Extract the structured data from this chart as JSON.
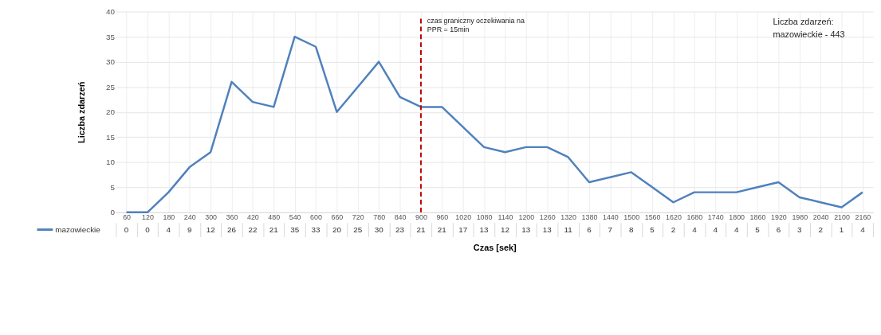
{
  "chart_data": {
    "type": "line",
    "xlabel": "Czas [sek]",
    "ylabel": "Liczba zdarzeń",
    "categories": [
      "60",
      "120",
      "180",
      "240",
      "300",
      "360",
      "420",
      "480",
      "540",
      "600",
      "660",
      "720",
      "780",
      "840",
      "900",
      "960",
      "1020",
      "1080",
      "1140",
      "1200",
      "1260",
      "1320",
      "1380",
      "1440",
      "1500",
      "1560",
      "1620",
      "1680",
      "1740",
      "1800",
      "1860",
      "1920",
      "1980",
      "2040",
      "2100",
      "2160"
    ],
    "series": [
      {
        "name": "mazowieckie",
        "color": "#4f81bd",
        "values": [
          0,
          0,
          4,
          9,
          12,
          26,
          22,
          21,
          35,
          33,
          20,
          25,
          30,
          23,
          21,
          21,
          17,
          13,
          12,
          13,
          13,
          11,
          6,
          7,
          8,
          5,
          2,
          4,
          4,
          4,
          5,
          6,
          3,
          2,
          1,
          4
        ]
      }
    ],
    "ylim": [
      0,
      40
    ],
    "yticks": [
      0,
      5,
      10,
      15,
      20,
      25,
      30,
      35,
      40
    ],
    "grid": true,
    "legend": "bottom",
    "data_labels": true,
    "marker": "none",
    "line_style": "solid",
    "ref_lines": [
      {
        "axis": "x",
        "value": "900",
        "label": "czas graniczny oczekiwania na\nPPR = 15min",
        "color": "#c00000",
        "line_style": "dashed"
      }
    ],
    "annotations": [
      "Liczba zdarzeń:\nmazowieckie - 443"
    ]
  }
}
